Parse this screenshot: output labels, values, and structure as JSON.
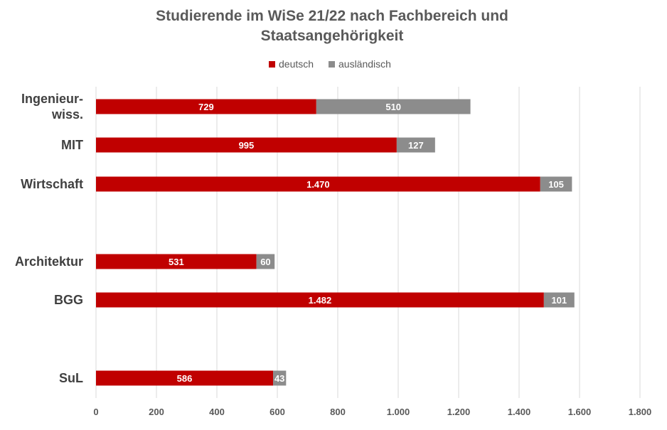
{
  "chart_data": {
    "type": "bar",
    "orientation": "horizontal",
    "stacked": true,
    "title_lines": [
      "Studierende im WiSe 21/22 nach Fachbereich und",
      "Staatsangehörigkeit"
    ],
    "categories": [
      {
        "lines": [
          "Ingenieur-",
          "wiss."
        ]
      },
      {
        "lines": [
          "MIT"
        ]
      },
      {
        "lines": [
          "Wirtschaft"
        ]
      },
      {
        "lines": [
          "Architektur"
        ]
      },
      {
        "lines": [
          "BGG"
        ]
      },
      {
        "lines": [
          "SuL"
        ]
      }
    ],
    "series": [
      {
        "name": "deutsch",
        "color": "#c00000",
        "values": [
          729,
          995,
          1470,
          531,
          1482,
          586
        ],
        "labels": [
          "729",
          "995",
          "1.470",
          "531",
          "1.482",
          "586"
        ]
      },
      {
        "name": "ausländisch",
        "color": "#8c8c8c",
        "values": [
          510,
          127,
          105,
          60,
          101,
          43
        ],
        "labels": [
          "510",
          "127",
          "105",
          "60",
          "101",
          "43"
        ]
      }
    ],
    "xlim": [
      0,
      1800
    ],
    "xticks": [
      0,
      200,
      400,
      600,
      800,
      1000,
      1200,
      1400,
      1600,
      1800
    ],
    "xtick_labels": [
      "0",
      "200",
      "400",
      "600",
      "800",
      "1.000",
      "1.200",
      "1.400",
      "1.600",
      "1.800"
    ],
    "grid": true,
    "legend_position": "top-center"
  }
}
